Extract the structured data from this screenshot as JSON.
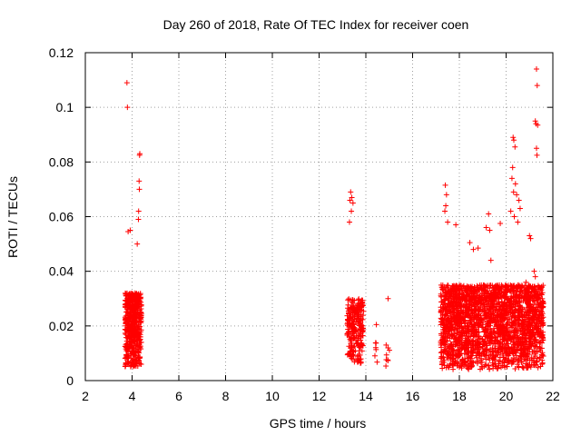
{
  "chart_data": {
    "type": "scatter",
    "title": "Day 260 of 2018, Rate Of TEC Index for receiver coen",
    "xlabel": "GPS time / hours",
    "ylabel": "ROTI / TECUs",
    "xlim": [
      2,
      22
    ],
    "ylim": [
      0,
      0.12
    ],
    "xticks": [
      "2",
      "4",
      "6",
      "8",
      "10",
      "12",
      "14",
      "16",
      "18",
      "20",
      "22"
    ],
    "yticks": [
      "0",
      "0.02",
      "0.04",
      "0.06",
      "0.08",
      "0.1",
      "0.12"
    ],
    "grid": true,
    "marker": "+",
    "color": "#ff0000",
    "clusters": [
      {
        "x0": 3.7,
        "x1": 4.4,
        "base": 0.005,
        "typical": 0.032,
        "count": 520
      },
      {
        "x0": 13.2,
        "x1": 13.9,
        "base": 0.006,
        "typical": 0.03,
        "count": 260
      },
      {
        "x0": 14.35,
        "x1": 14.5,
        "base": 0.006,
        "typical": 0.014,
        "count": 6
      },
      {
        "x0": 14.85,
        "x1": 15.05,
        "base": 0.005,
        "typical": 0.014,
        "count": 8
      },
      {
        "x0": 17.2,
        "x1": 21.6,
        "base": 0.004,
        "typical": 0.035,
        "count": 2300
      }
    ],
    "outliers": [
      {
        "x": 3.78,
        "y": 0.109
      },
      {
        "x": 3.8,
        "y": 0.1
      },
      {
        "x": 3.83,
        "y": 0.0545
      },
      {
        "x": 3.92,
        "y": 0.055
      },
      {
        "x": 4.32,
        "y": 0.0825
      },
      {
        "x": 4.33,
        "y": 0.083
      },
      {
        "x": 4.3,
        "y": 0.073
      },
      {
        "x": 4.31,
        "y": 0.07
      },
      {
        "x": 4.28,
        "y": 0.062
      },
      {
        "x": 4.27,
        "y": 0.059
      },
      {
        "x": 4.22,
        "y": 0.05
      },
      {
        "x": 13.35,
        "y": 0.069
      },
      {
        "x": 13.4,
        "y": 0.067
      },
      {
        "x": 13.32,
        "y": 0.066
      },
      {
        "x": 13.38,
        "y": 0.062
      },
      {
        "x": 13.3,
        "y": 0.058
      },
      {
        "x": 13.45,
        "y": 0.065
      },
      {
        "x": 14.45,
        "y": 0.0205
      },
      {
        "x": 14.95,
        "y": 0.03
      },
      {
        "x": 17.4,
        "y": 0.0715
      },
      {
        "x": 17.45,
        "y": 0.068
      },
      {
        "x": 17.42,
        "y": 0.064
      },
      {
        "x": 17.38,
        "y": 0.062
      },
      {
        "x": 17.5,
        "y": 0.058
      },
      {
        "x": 17.85,
        "y": 0.057
      },
      {
        "x": 18.45,
        "y": 0.0505
      },
      {
        "x": 18.6,
        "y": 0.048
      },
      {
        "x": 18.8,
        "y": 0.0485
      },
      {
        "x": 19.15,
        "y": 0.056
      },
      {
        "x": 19.25,
        "y": 0.061
      },
      {
        "x": 19.3,
        "y": 0.055
      },
      {
        "x": 19.75,
        "y": 0.0575
      },
      {
        "x": 19.35,
        "y": 0.044
      },
      {
        "x": 20.3,
        "y": 0.089
      },
      {
        "x": 20.33,
        "y": 0.088
      },
      {
        "x": 20.38,
        "y": 0.0855
      },
      {
        "x": 20.28,
        "y": 0.078
      },
      {
        "x": 20.25,
        "y": 0.074
      },
      {
        "x": 20.4,
        "y": 0.072
      },
      {
        "x": 20.45,
        "y": 0.068
      },
      {
        "x": 20.55,
        "y": 0.066
      },
      {
        "x": 20.32,
        "y": 0.069
      },
      {
        "x": 20.2,
        "y": 0.062
      },
      {
        "x": 20.35,
        "y": 0.06
      },
      {
        "x": 20.5,
        "y": 0.058
      },
      {
        "x": 20.6,
        "y": 0.063
      },
      {
        "x": 21.0,
        "y": 0.053
      },
      {
        "x": 21.05,
        "y": 0.052
      },
      {
        "x": 21.3,
        "y": 0.114
      },
      {
        "x": 21.33,
        "y": 0.108
      },
      {
        "x": 21.25,
        "y": 0.095
      },
      {
        "x": 21.28,
        "y": 0.094
      },
      {
        "x": 21.35,
        "y": 0.0935
      },
      {
        "x": 21.3,
        "y": 0.085
      },
      {
        "x": 21.32,
        "y": 0.0825
      },
      {
        "x": 21.2,
        "y": 0.04
      },
      {
        "x": 21.25,
        "y": 0.038
      },
      {
        "x": 20.85,
        "y": 0.036
      },
      {
        "x": 20.95,
        "y": 0.034
      }
    ]
  }
}
